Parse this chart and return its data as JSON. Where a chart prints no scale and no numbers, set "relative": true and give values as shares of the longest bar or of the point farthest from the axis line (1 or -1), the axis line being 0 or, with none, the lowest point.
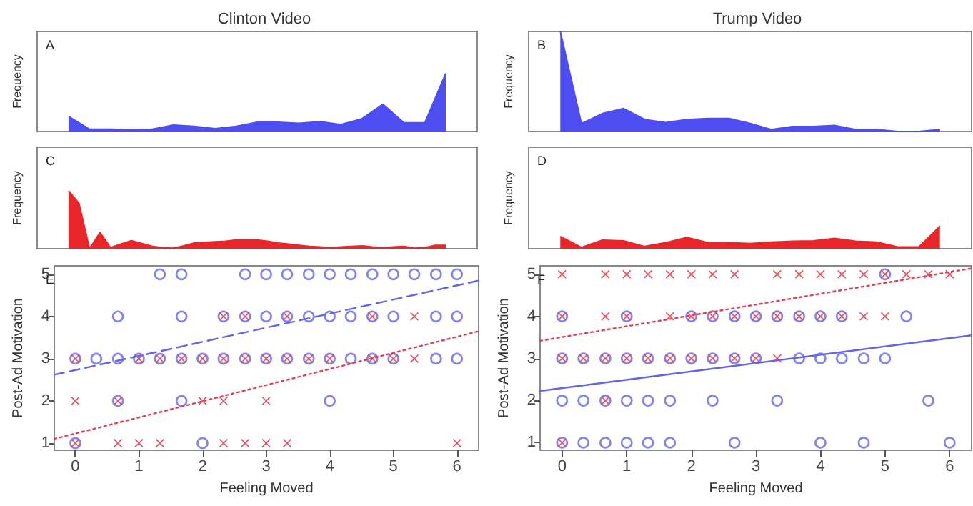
{
  "chart_data": [
    {
      "type": "area",
      "title": "Clinton Video",
      "ylabel": "Frequency",
      "annotations": [
        "A"
      ],
      "relative": true,
      "categories": [
        null,
        null,
        null,
        null,
        null,
        null,
        null,
        null,
        null,
        null,
        null,
        null,
        null,
        null,
        null,
        null,
        null,
        null,
        null
      ],
      "series": [
        {
          "color": "#4d4df2",
          "values": [
            0.26,
            0.04,
            0.04,
            0.03,
            0.04,
            0.11,
            0.09,
            0.05,
            0.09,
            0.16,
            0.16,
            0.14,
            0.17,
            0.12,
            0.22,
            0.47,
            0.15,
            0.15,
            1
          ]
        }
      ]
    },
    {
      "type": "area",
      "title": "Trump Video",
      "ylabel": "Frequency",
      "annotations": [
        "B"
      ],
      "relative": true,
      "categories": [
        null,
        null,
        null,
        null,
        null,
        null,
        null,
        null,
        null,
        null,
        null,
        null,
        null,
        null,
        null,
        null,
        null,
        null,
        null
      ],
      "series": [
        {
          "color": "#4d4df2",
          "values": [
            1,
            0.08,
            0.18,
            0.23,
            0.12,
            0.09,
            0.12,
            0.13,
            0.13,
            0.08,
            0.02,
            0.05,
            0.05,
            0.06,
            0.02,
            0.02,
            0,
            0,
            0.02
          ]
        }
      ]
    },
    {
      "type": "area",
      "ylabel": "Frequency",
      "annotations": [
        "C"
      ],
      "relative": true,
      "categories": [
        null,
        null,
        null,
        null,
        null,
        null,
        null,
        null,
        null,
        null,
        null,
        null,
        null,
        null,
        null,
        null,
        null,
        null,
        null,
        null,
        null,
        null,
        null,
        null,
        null,
        null,
        null,
        null,
        null,
        null,
        null,
        null,
        null,
        null,
        null,
        null,
        null
      ],
      "series": [
        {
          "color": "#e8262a",
          "values": [
            1,
            0.78,
            0,
            0.28,
            0.02,
            0.08,
            0.14,
            0.09,
            0.04,
            0.02,
            0.01,
            0.05,
            0.1,
            0.11,
            0.12,
            0.13,
            0.15,
            0.15,
            0.15,
            0.13,
            0.1,
            0.08,
            0.06,
            0.04,
            0.03,
            0.02,
            0.03,
            0.04,
            0.05,
            0.03,
            0.02,
            0.03,
            0.04,
            0.01,
            0.02,
            0.06,
            0.06
          ]
        }
      ]
    },
    {
      "type": "area",
      "ylabel": "Frequency",
      "annotations": [
        "D"
      ],
      "relative": true,
      "categories": [
        null,
        null,
        null,
        null,
        null,
        null,
        null,
        null,
        null,
        null,
        null,
        null,
        null,
        null,
        null,
        null,
        null,
        null,
        null
      ],
      "series": [
        {
          "color": "#e8262a",
          "values": [
            0.54,
            0.06,
            0.38,
            0.35,
            0.1,
            0.27,
            0.5,
            0.27,
            0.27,
            0.23,
            0.29,
            0.33,
            0.35,
            0.46,
            0.33,
            0.29,
            0.08,
            0.08,
            1
          ]
        }
      ]
    },
    {
      "type": "scatter",
      "xlabel": "Feeling Moved",
      "ylabel": "Post-Ad Motivation",
      "annotations": [
        "E"
      ],
      "xlim": [
        -0.33,
        6.34
      ],
      "ylim": [
        0.83,
        5.2
      ],
      "xticks": [
        0,
        1,
        2,
        3,
        4,
        5,
        6
      ],
      "yticks": [
        1,
        2,
        3,
        4,
        5
      ],
      "series": [
        {
          "color": "#6464ee",
          "marker": "circle",
          "x": [
            1.33,
            1.67,
            2.67,
            3,
            3.33,
            3.67,
            4,
            4.33,
            4.67,
            5,
            5.33,
            5.67,
            6,
            0.67,
            1.67,
            2.33,
            2.67,
            3,
            3.33,
            3.67,
            4,
            4.33,
            4.67,
            5,
            5.67,
            6,
            0,
            0.33,
            0.67,
            1,
            1.33,
            1.67,
            2,
            2.33,
            2.67,
            3,
            3.33,
            3.67,
            4,
            4.33,
            4.67,
            5,
            5.67,
            6,
            0.67,
            1.67,
            4,
            0,
            2
          ],
          "values": [
            5,
            5,
            5,
            5,
            5,
            5,
            5,
            5,
            5,
            5,
            5,
            5,
            5,
            4,
            4,
            4,
            4,
            4,
            4,
            4,
            4,
            4,
            4,
            4,
            4,
            4,
            3,
            3,
            3,
            3,
            3,
            3,
            3,
            3,
            3,
            3,
            3,
            3,
            3,
            3,
            3,
            3,
            3,
            3,
            2,
            2,
            2,
            1,
            1
          ]
        },
        {
          "color": "#e8404e",
          "marker": "cross",
          "x": [
            2.33,
            2.67,
            3.33,
            4.67,
            5.33,
            0,
            1,
            1.33,
            1.67,
            2,
            2.33,
            2.67,
            3,
            3.33,
            3.67,
            4,
            4.67,
            5,
            5.33,
            0,
            0.67,
            2,
            2.33,
            3,
            0,
            0.67,
            1,
            1.33,
            2.33,
            2.67,
            3,
            3.33,
            6
          ],
          "values": [
            4,
            4,
            4,
            4,
            4,
            3,
            3,
            3,
            3,
            3,
            3,
            3,
            3,
            3,
            3,
            3,
            3,
            3,
            3,
            2,
            2,
            2,
            2,
            2,
            1,
            1,
            1,
            1,
            1,
            1,
            1,
            1,
            1
          ]
        },
        {
          "type": "line",
          "color": "#6464e8",
          "line_style": "dashed",
          "x": [
            -0.33,
            6.34
          ],
          "values": [
            2.62,
            4.85
          ]
        },
        {
          "type": "line",
          "color": "#e04050",
          "line_style": "dotted",
          "x": [
            -0.33,
            6.34
          ],
          "values": [
            1.1,
            3.65
          ]
        }
      ]
    },
    {
      "type": "scatter",
      "xlabel": "Feeling Moved",
      "ylabel": "Post-Ad Motivation",
      "annotations": [
        "F"
      ],
      "xlim": [
        -0.34,
        6.34
      ],
      "ylim": [
        0.82,
        5.2
      ],
      "xticks": [
        0,
        1,
        2,
        3,
        4,
        5,
        6
      ],
      "yticks": [
        1,
        2,
        3,
        4,
        5
      ],
      "series": [
        {
          "color": "#6464ee",
          "marker": "circle",
          "x": [
            5,
            0,
            1,
            2,
            2.33,
            2.67,
            3,
            3.33,
            3.67,
            4,
            4.33,
            5.33,
            0,
            0.33,
            0.67,
            1,
            1.33,
            1.67,
            2,
            2.33,
            2.67,
            3,
            3.67,
            4,
            4.33,
            4.67,
            5,
            0,
            0.33,
            0.67,
            1,
            1.33,
            1.67,
            2.33,
            3.33,
            5.67,
            0,
            0.33,
            0.67,
            1,
            1.33,
            1.67,
            2.67,
            4,
            4.67,
            6
          ],
          "values": [
            5,
            4,
            4,
            4,
            4,
            4,
            4,
            4,
            4,
            4,
            4,
            4,
            3,
            3,
            3,
            3,
            3,
            3,
            3,
            3,
            3,
            3,
            3,
            3,
            3,
            3,
            3,
            2,
            2,
            2,
            2,
            2,
            2,
            2,
            2,
            2,
            1,
            1,
            1,
            1,
            1,
            1,
            1,
            1,
            1,
            1
          ]
        },
        {
          "color": "#e8404e",
          "marker": "cross",
          "x": [
            0,
            0.67,
            1,
            1.33,
            1.67,
            2,
            2.33,
            2.67,
            3.33,
            3.67,
            4,
            4.33,
            4.67,
            5,
            5.33,
            5.67,
            6,
            0,
            0.67,
            1,
            1.67,
            2,
            2.33,
            2.67,
            3,
            3.33,
            3.67,
            4,
            4.33,
            4.67,
            5,
            0,
            0.33,
            0.67,
            1,
            1.33,
            1.67,
            2,
            2.33,
            2.67,
            3,
            3.33,
            0.67,
            0
          ],
          "values": [
            5,
            5,
            5,
            5,
            5,
            5,
            5,
            5,
            5,
            5,
            5,
            5,
            5,
            5,
            5,
            5,
            5,
            4,
            4,
            4,
            4,
            4,
            4,
            4,
            4,
            4,
            4,
            4,
            4,
            4,
            4,
            3,
            3,
            3,
            3,
            3,
            3,
            3,
            3,
            3,
            3,
            3,
            2,
            1
          ]
        },
        {
          "type": "line",
          "color": "#6464e8",
          "line_style": "solid",
          "x": [
            -0.34,
            6.34
          ],
          "values": [
            2.23,
            3.55
          ]
        },
        {
          "type": "line",
          "color": "#e04050",
          "line_style": "dotted",
          "x": [
            -0.34,
            6.34
          ],
          "values": [
            3.42,
            5.14
          ]
        }
      ]
    }
  ]
}
